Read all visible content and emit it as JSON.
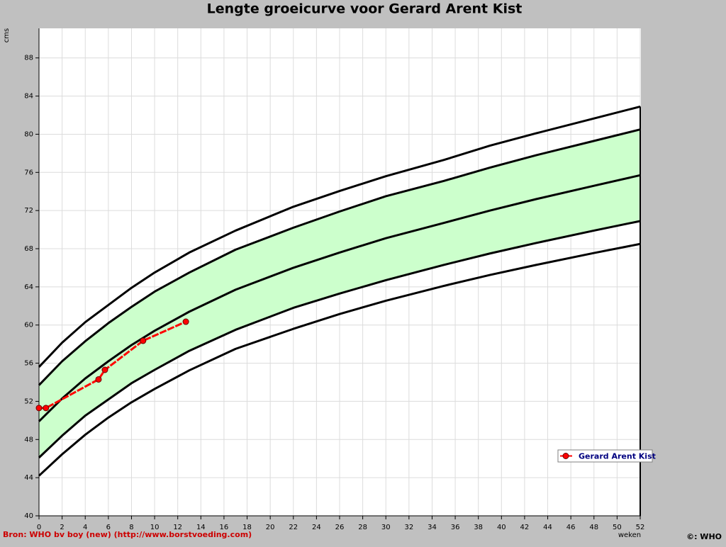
{
  "chart_data": {
    "type": "line",
    "title": "Lengte groeicurve voor Gerard Arent Kist",
    "y_label": "cms",
    "x_label": "weken",
    "source": "Bron: WHO bv boy (new) (http://www.borstvoeding.com)",
    "copyright": "©: WHO",
    "xlim": [
      0,
      52
    ],
    "ylim": [
      40,
      91.1
    ],
    "xticks": [
      0,
      2,
      4,
      6,
      8,
      10,
      12,
      14,
      16,
      18,
      20,
      22,
      24,
      26,
      28,
      30,
      32,
      34,
      36,
      38,
      40,
      42,
      44,
      46,
      48,
      50,
      52
    ],
    "yticks": [
      40,
      44,
      48,
      52,
      56,
      60,
      64,
      68,
      72,
      76,
      80,
      84,
      88
    ],
    "grid": true,
    "legend": "right",
    "x": [
      0,
      2,
      4,
      6,
      8,
      10,
      13,
      17,
      22,
      26,
      30,
      35,
      39,
      43,
      48,
      52
    ],
    "reference_curves": [
      {
        "color": "#000000",
        "values": [
          55.6,
          58.15,
          60.3,
          62.1,
          63.9,
          65.5,
          67.6,
          69.9,
          72.4,
          74.05,
          75.6,
          77.3,
          78.8,
          80.1,
          81.65,
          82.9
        ]
      },
      {
        "color": "#000000",
        "values": [
          53.7,
          56.2,
          58.3,
          60.2,
          61.9,
          63.5,
          65.5,
          67.9,
          70.2,
          71.9,
          73.5,
          75.1,
          76.5,
          77.8,
          79.3,
          80.5
        ]
      },
      {
        "color": "#000000",
        "values": [
          49.9,
          52.3,
          54.4,
          56.2,
          57.9,
          59.4,
          61.4,
          63.7,
          66.0,
          67.6,
          69.1,
          70.7,
          72.0,
          73.2,
          74.6,
          75.7
        ]
      },
      {
        "color": "#000000",
        "values": [
          46.1,
          48.4,
          50.5,
          52.2,
          53.9,
          55.3,
          57.3,
          59.5,
          61.8,
          63.3,
          64.7,
          66.3,
          67.5,
          68.6,
          69.9,
          70.9
        ]
      },
      {
        "color": "#000000",
        "values": [
          44.2,
          46.45,
          48.5,
          50.3,
          51.9,
          53.3,
          55.25,
          57.5,
          59.6,
          61.15,
          62.55,
          64.1,
          65.25,
          66.3,
          67.55,
          68.5
        ]
      }
    ],
    "band": {
      "color": "#ccffcc",
      "between": [
        1,
        3
      ]
    },
    "series": [
      {
        "name": "Gerard Arent Kist",
        "color": "#ff0000",
        "x": [
          0,
          0.6,
          5.15,
          5.7,
          9.0,
          12.7
        ],
        "values": [
          51.3,
          51.3,
          54.3,
          55.3,
          58.35,
          60.35
        ]
      }
    ]
  }
}
